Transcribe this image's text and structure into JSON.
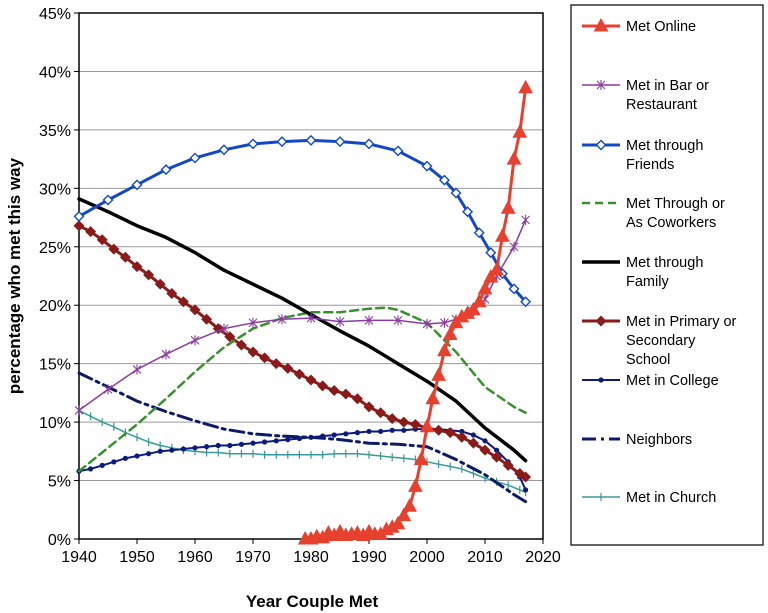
{
  "chart_data": {
    "type": "line",
    "title": "",
    "xlabel": "Year Couple Met",
    "ylabel": "percentage who met this way",
    "xlim": [
      1940,
      2020
    ],
    "ylim": [
      0,
      45
    ],
    "x_ticks": [
      "1940",
      "1950",
      "1960",
      "1970",
      "1980",
      "1990",
      "2000",
      "2010",
      "2020"
    ],
    "y_ticks": [
      "0%",
      "5%",
      "10%",
      "15%",
      "20%",
      "25%",
      "30%",
      "35%",
      "40%",
      "45%"
    ],
    "grid": true,
    "legend_position": "right",
    "series": [
      {
        "name": "Met Online",
        "legend_lines": [
          "Met Online"
        ],
        "color": "#e8402e",
        "dash": "",
        "width": 3,
        "marker": "triangle",
        "marker_every": 1,
        "x": [
          1979,
          1980,
          1981,
          1982,
          1983,
          1984,
          1985,
          1986,
          1987,
          1988,
          1989,
          1990,
          1991,
          1992,
          1993,
          1994,
          1995,
          1996,
          1997,
          1998,
          1999,
          2000,
          2001,
          2002,
          2003,
          2004,
          2005,
          2006,
          2007,
          2008,
          2009,
          2010,
          2011,
          2012,
          2013,
          2014,
          2015,
          2016,
          2017
        ],
        "y": [
          0,
          0,
          0.2,
          0.1,
          0.5,
          0.3,
          0.6,
          0.3,
          0.4,
          0.5,
          0.3,
          0.6,
          0.4,
          0.4,
          0.8,
          1.0,
          1.3,
          2.0,
          2.8,
          4.5,
          6.8,
          9.6,
          12.0,
          14.0,
          16.1,
          17.5,
          18.5,
          19.0,
          19.3,
          19.6,
          20.3,
          21.4,
          22.4,
          23.0,
          25.9,
          28.3,
          32.5,
          34.8,
          38.6
        ]
      },
      {
        "name": "Met in Bar or Restaurant",
        "legend_lines": [
          "Met in Bar or",
          "Restaurant"
        ],
        "color": "#8a3da0",
        "dash": "",
        "width": 1.5,
        "marker": "star",
        "marker_every": 1,
        "x": [
          1940,
          1945,
          1950,
          1955,
          1960,
          1965,
          1970,
          1975,
          1980,
          1985,
          1990,
          1995,
          2000,
          2003,
          2005,
          2008,
          2010,
          2012,
          2015,
          2017
        ],
        "y": [
          11.0,
          12.8,
          14.5,
          15.8,
          17.0,
          18.0,
          18.5,
          18.8,
          18.9,
          18.6,
          18.7,
          18.7,
          18.4,
          18.5,
          18.8,
          19.5,
          20.5,
          22.5,
          25.0,
          27.3
        ]
      },
      {
        "name": "Met through Friends",
        "legend_lines": [
          "Met through",
          "Friends"
        ],
        "color": "#1448c8",
        "dash": "",
        "width": 3,
        "marker": "diamond",
        "marker_every": 1,
        "x": [
          1940,
          1945,
          1950,
          1955,
          1960,
          1965,
          1970,
          1975,
          1980,
          1985,
          1990,
          1995,
          2000,
          2003,
          2005,
          2007,
          2009,
          2011,
          2013,
          2015,
          2017
        ],
        "y": [
          27.6,
          29.0,
          30.3,
          31.6,
          32.6,
          33.3,
          33.8,
          34.0,
          34.1,
          34.0,
          33.8,
          33.2,
          31.9,
          30.7,
          29.6,
          28.0,
          26.2,
          24.5,
          22.7,
          21.4,
          20.3
        ]
      },
      {
        "name": "Met Through or As Coworkers",
        "legend_lines": [
          "Met Through or",
          "As Coworkers"
        ],
        "color": "#3a8f2e",
        "dash": "8,5",
        "width": 2.5,
        "marker": "none",
        "marker_every": 1,
        "x": [
          1940,
          1945,
          1950,
          1955,
          1960,
          1965,
          1970,
          1975,
          1980,
          1985,
          1990,
          1993,
          1995,
          2000,
          2005,
          2010,
          2015,
          2017
        ],
        "y": [
          5.8,
          7.8,
          9.8,
          12.0,
          14.3,
          16.4,
          18.0,
          18.9,
          19.4,
          19.4,
          19.7,
          19.8,
          19.6,
          18.5,
          16.0,
          13.0,
          11.3,
          10.8
        ]
      },
      {
        "name": "Met through Family",
        "legend_lines": [
          "Met through",
          "Family"
        ],
        "color": "#000000",
        "dash": "",
        "width": 3.5,
        "marker": "none",
        "marker_every": 1,
        "x": [
          1940,
          1945,
          1950,
          1955,
          1960,
          1965,
          1970,
          1975,
          1980,
          1985,
          1990,
          1995,
          2000,
          2005,
          2010,
          2015,
          2017
        ],
        "y": [
          29.1,
          28.0,
          26.8,
          25.8,
          24.5,
          23.0,
          21.8,
          20.6,
          19.2,
          17.8,
          16.5,
          15.0,
          13.5,
          11.8,
          9.5,
          7.6,
          6.7
        ]
      },
      {
        "name": "Met in Primary or Secondary School",
        "legend_lines": [
          "Met in Primary or",
          "Secondary",
          "School"
        ],
        "color": "#8b1a1a",
        "dash": "",
        "width": 3,
        "marker": "diamond",
        "marker_every": 1,
        "x": [
          1940,
          1942,
          1944,
          1946,
          1948,
          1950,
          1952,
          1954,
          1956,
          1958,
          1960,
          1962,
          1964,
          1966,
          1968,
          1970,
          1972,
          1974,
          1976,
          1978,
          1980,
          1982,
          1984,
          1986,
          1988,
          1990,
          1992,
          1994,
          1996,
          1998,
          2000,
          2002,
          2004,
          2006,
          2008,
          2010,
          2012,
          2014,
          2016,
          2017
        ],
        "y": [
          26.8,
          26.3,
          25.6,
          24.8,
          24.1,
          23.3,
          22.6,
          21.8,
          21.0,
          20.3,
          19.6,
          18.8,
          18.0,
          17.3,
          16.6,
          16.0,
          15.5,
          15.0,
          14.6,
          14.1,
          13.6,
          13.1,
          12.7,
          12.4,
          12.0,
          11.3,
          10.8,
          10.3,
          10.0,
          9.8,
          9.5,
          9.3,
          9.1,
          8.7,
          8.2,
          7.6,
          7.0,
          6.3,
          5.6,
          5.3
        ]
      },
      {
        "name": "Met in College",
        "legend_lines": [
          "Met in College"
        ],
        "color": "#0d1a80",
        "dash": "",
        "width": 2,
        "marker": "dot",
        "marker_every": 1,
        "x": [
          1940,
          1942,
          1944,
          1946,
          1948,
          1950,
          1952,
          1954,
          1956,
          1958,
          1960,
          1962,
          1964,
          1966,
          1968,
          1970,
          1972,
          1974,
          1976,
          1978,
          1980,
          1982,
          1984,
          1986,
          1988,
          1990,
          1992,
          1994,
          1996,
          1998,
          2000,
          2002,
          2004,
          2006,
          2008,
          2010,
          2012,
          2014,
          2016,
          2017
        ],
        "y": [
          5.8,
          6.0,
          6.3,
          6.6,
          6.9,
          7.1,
          7.3,
          7.5,
          7.6,
          7.7,
          7.8,
          7.9,
          8.0,
          8.0,
          8.1,
          8.2,
          8.3,
          8.4,
          8.5,
          8.6,
          8.7,
          8.8,
          8.9,
          9.0,
          9.1,
          9.2,
          9.2,
          9.3,
          9.3,
          9.4,
          9.4,
          9.4,
          9.3,
          9.2,
          8.9,
          8.4,
          7.6,
          6.6,
          5.3,
          4.2
        ]
      },
      {
        "name": "Neighbors",
        "legend_lines": [
          "Neighbors"
        ],
        "color": "#0d1a66",
        "dash": "14,5,3,5",
        "width": 3,
        "marker": "none",
        "marker_every": 1,
        "x": [
          1940,
          1945,
          1950,
          1955,
          1960,
          1965,
          1970,
          1975,
          1980,
          1985,
          1990,
          1995,
          2000,
          2005,
          2010,
          2015,
          2017
        ],
        "y": [
          14.2,
          13.0,
          11.8,
          10.9,
          10.1,
          9.4,
          9.0,
          8.8,
          8.7,
          8.5,
          8.2,
          8.1,
          7.9,
          6.8,
          5.5,
          3.8,
          3.2
        ]
      },
      {
        "name": "Met in Church",
        "legend_lines": [
          "Met in Church"
        ],
        "color": "#3a9a9a",
        "dash": "",
        "width": 1.5,
        "marker": "plus",
        "marker_every": 1,
        "x": [
          1940,
          1942,
          1944,
          1946,
          1948,
          1950,
          1952,
          1954,
          1956,
          1958,
          1960,
          1962,
          1964,
          1966,
          1968,
          1970,
          1972,
          1974,
          1976,
          1978,
          1980,
          1982,
          1984,
          1986,
          1988,
          1990,
          1992,
          1994,
          1996,
          1998,
          2000,
          2002,
          2004,
          2006,
          2008,
          2010,
          2012,
          2014,
          2016,
          2017
        ],
        "y": [
          11.0,
          10.5,
          10.0,
          9.6,
          9.1,
          8.7,
          8.3,
          8.0,
          7.8,
          7.6,
          7.5,
          7.4,
          7.4,
          7.3,
          7.3,
          7.3,
          7.2,
          7.2,
          7.2,
          7.2,
          7.2,
          7.2,
          7.3,
          7.3,
          7.3,
          7.2,
          7.1,
          7.0,
          6.9,
          6.8,
          6.6,
          6.4,
          6.2,
          6.0,
          5.6,
          5.2,
          4.9,
          4.6,
          4.2,
          4.0
        ]
      }
    ]
  }
}
